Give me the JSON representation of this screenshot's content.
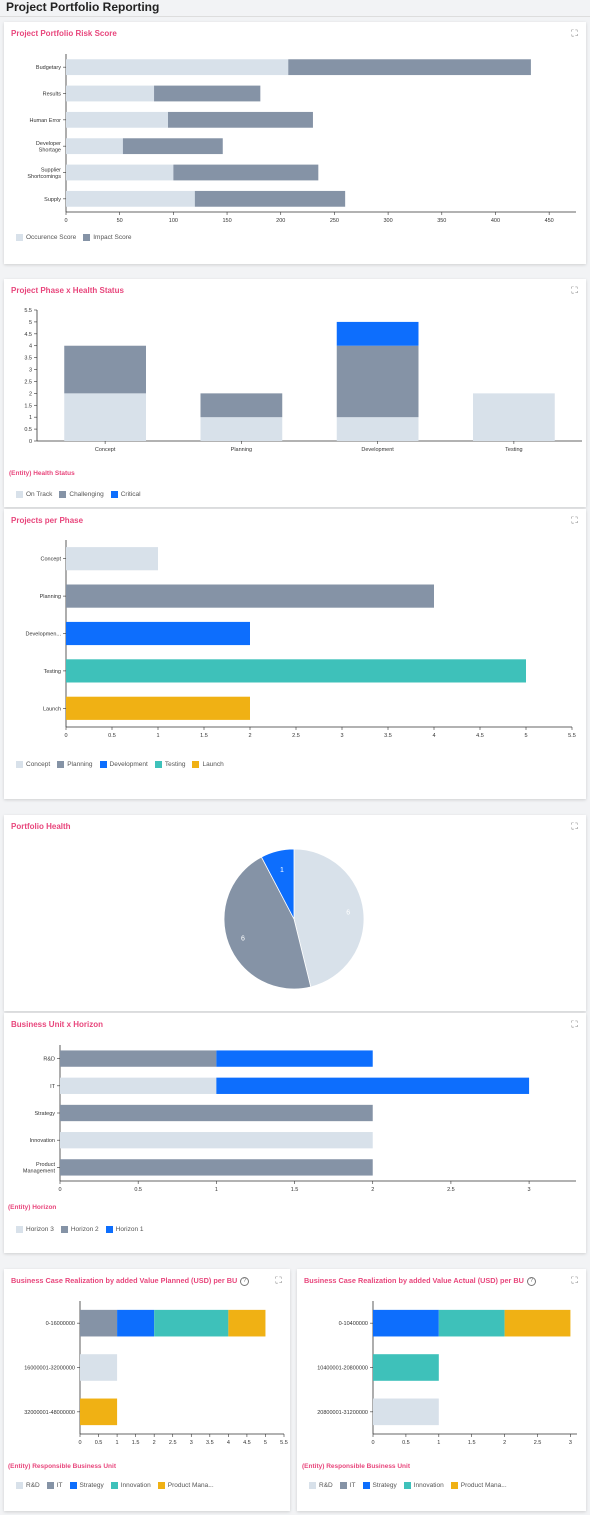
{
  "page": {
    "title": "Project Portfolio Reporting"
  },
  "colors": {
    "c1": "#d8e1ea",
    "c2": "#8593a6",
    "c3": "#0d6efd",
    "c4": "#3ec1ba",
    "c5": "#f0b114",
    "accent": "#e8467c"
  },
  "cards": {
    "risk": {
      "title": "Project Portfolio Risk Score",
      "legend": [
        "Occurence Score",
        "Impact Score"
      ],
      "chart_data": {
        "type": "bar",
        "orientation": "horizontal",
        "stacked": true,
        "categories": [
          "Budgetary",
          "Results",
          "Human Error",
          "Developer Shortage",
          "Supplier Shortcomings",
          "Supply"
        ],
        "series": [
          {
            "name": "Occurence Score",
            "values": [
              207,
              82,
              95,
              53,
              100,
              120
            ]
          },
          {
            "name": "Impact Score",
            "values": [
              226,
              99,
              135,
              93,
              135,
              140
            ]
          }
        ],
        "ticks": [
          "0",
          "50",
          "100",
          "150",
          "200",
          "250",
          "300",
          "350",
          "400",
          "450"
        ],
        "xlim": [
          0,
          475
        ]
      }
    },
    "phase_health": {
      "title": "Project Phase x Health Status",
      "entity_label": "(Entity) Health Status",
      "legend": [
        "On Track",
        "Challenging",
        "Critical"
      ],
      "chart_data": {
        "type": "bar",
        "orientation": "vertical",
        "stacked": true,
        "categories": [
          "Concept",
          "Planning",
          "Development",
          "Testing"
        ],
        "series": [
          {
            "name": "On Track",
            "values": [
              2,
              1,
              1,
              2
            ]
          },
          {
            "name": "Challenging",
            "values": [
              2,
              1,
              3,
              0
            ]
          },
          {
            "name": "Critical",
            "values": [
              0,
              0,
              1,
              0
            ]
          }
        ],
        "ticks": [
          "0",
          "0.5",
          "1",
          "1.5",
          "2",
          "2.5",
          "3",
          "3.5",
          "4",
          "4.5",
          "5",
          "5.5"
        ],
        "ylim": [
          0,
          5.5
        ]
      }
    },
    "per_phase": {
      "title": "Projects per Phase",
      "legend": [
        "Concept",
        "Planning",
        "Development",
        "Testing",
        "Launch"
      ],
      "chart_data": {
        "type": "bar",
        "orientation": "horizontal",
        "categories": [
          "Concept",
          "Planning",
          "Developmen...",
          "Testing",
          "Launch"
        ],
        "values": [
          1,
          4,
          2,
          5,
          2
        ],
        "ticks": [
          "0",
          "0.5",
          "1",
          "1.5",
          "2",
          "2.5",
          "3",
          "3.5",
          "4",
          "4.5",
          "5",
          "5.5"
        ],
        "xlim": [
          0,
          5.5
        ]
      }
    },
    "health": {
      "title": "Portfolio Health",
      "chart_data": {
        "type": "pie",
        "slices": [
          {
            "label": "6",
            "value": 6
          },
          {
            "label": "6",
            "value": 6
          },
          {
            "label": "1",
            "value": 1
          }
        ]
      }
    },
    "bu_horizon": {
      "title": "Business Unit x Horizon",
      "entity_label": "(Entity) Horizon",
      "legend": [
        "Horizon 3",
        "Horizon 2",
        "Horizon 1"
      ],
      "chart_data": {
        "type": "bar",
        "orientation": "horizontal",
        "stacked": true,
        "categories": [
          "R&D",
          "IT",
          "Strategy",
          "Innovation",
          "Product Management"
        ],
        "series": [
          {
            "name": "Horizon 3",
            "values": [
              0,
              1,
              0,
              2,
              0
            ]
          },
          {
            "name": "Horizon 2",
            "values": [
              1,
              0,
              2,
              0,
              2
            ]
          },
          {
            "name": "Horizon 1",
            "values": [
              1,
              2,
              0,
              0,
              0
            ]
          }
        ],
        "ticks": [
          "0",
          "0.5",
          "1",
          "1.5",
          "2",
          "2.5",
          "3"
        ],
        "xlim": [
          0,
          3.3
        ]
      }
    },
    "bc_planned": {
      "title": "Business Case Realization by added Value Planned (USD) per BU",
      "entity_label": "(Entity) Responsible Business Unit",
      "legend": [
        "R&D",
        "IT",
        "Strategy",
        "Innovation",
        "Product Mana..."
      ],
      "chart_data": {
        "type": "bar",
        "orientation": "horizontal",
        "stacked": true,
        "categories": [
          "0-16000000",
          "16000001-32000000",
          "32000001-48000000"
        ],
        "series": [
          {
            "name": "R&D",
            "values": [
              0,
              1,
              0
            ]
          },
          {
            "name": "IT",
            "values": [
              1,
              0,
              0
            ]
          },
          {
            "name": "Strategy",
            "values": [
              1,
              0,
              0
            ]
          },
          {
            "name": "Innovation",
            "values": [
              2,
              0,
              0
            ]
          },
          {
            "name": "Product Mana...",
            "values": [
              1,
              0,
              1
            ]
          }
        ],
        "ticks": [
          "0",
          "0.5",
          "1",
          "1.5",
          "2",
          "2.5",
          "3",
          "3.5",
          "4",
          "4.5",
          "5",
          "5.5"
        ],
        "xlim": [
          0,
          5.5
        ]
      }
    },
    "bc_actual": {
      "title": "Business Case Realization by added Value Actual (USD) per BU",
      "entity_label": "(Entity) Responsible Business Unit",
      "legend": [
        "R&D",
        "IT",
        "Strategy",
        "Innovation",
        "Product Mana..."
      ],
      "chart_data": {
        "type": "bar",
        "orientation": "horizontal",
        "stacked": true,
        "categories": [
          "0-10400000",
          "10400001-20800000",
          "20800001-31200000"
        ],
        "series": [
          {
            "name": "R&D",
            "values": [
              0,
              0,
              1
            ]
          },
          {
            "name": "IT",
            "values": [
              0,
              0,
              0
            ]
          },
          {
            "name": "Strategy",
            "values": [
              1,
              0,
              0
            ]
          },
          {
            "name": "Innovation",
            "values": [
              1,
              1,
              0
            ]
          },
          {
            "name": "Product Mana...",
            "values": [
              1,
              0,
              0
            ]
          }
        ],
        "ticks": [
          "0",
          "0.5",
          "1",
          "1.5",
          "2",
          "2.5",
          "3"
        ],
        "xlim": [
          0,
          3.1
        ]
      }
    }
  }
}
